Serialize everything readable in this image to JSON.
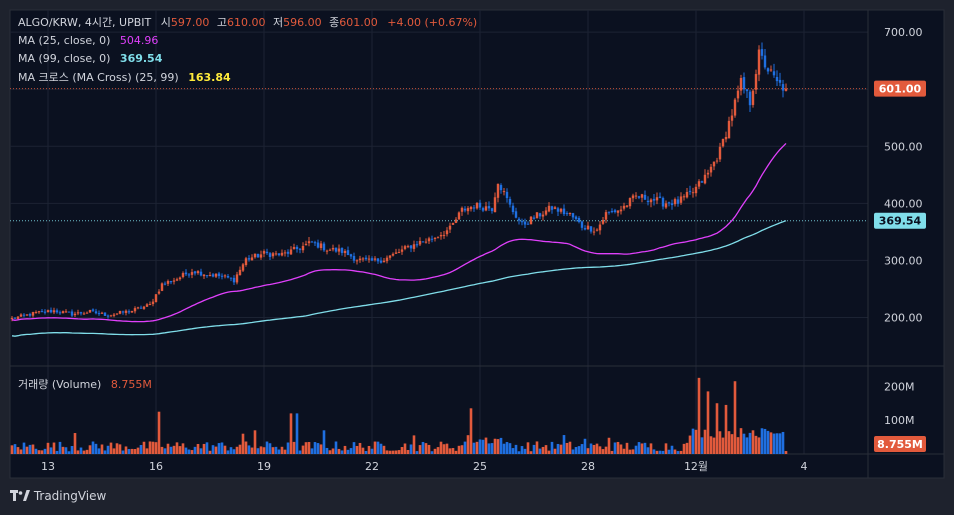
{
  "header": {
    "symbol": "ALGO/KRW, 4시간, UPBIT",
    "open_label": "시",
    "open": "597.00",
    "high_label": "고",
    "high": "610.00",
    "low_label": "저",
    "low": "596.00",
    "close_label": "종",
    "close": "601.00",
    "change": "+4.00 (+0.67%)"
  },
  "indicators": [
    {
      "label": "MA (25, close, 0)",
      "value": "504.96",
      "color": "#e040fb"
    },
    {
      "label": "MA (99, close, 0)",
      "value": "369.54",
      "color": "#80deea"
    },
    {
      "label": "MA 크로스 (MA Cross) (25, 99)",
      "value": "163.84",
      "color": "#ffeb3b"
    }
  ],
  "volume_pane": {
    "label": "거래량 (Volume)",
    "value": "8.755M"
  },
  "brand": "TradingView",
  "colors": {
    "up": "#e25a3c",
    "down": "#1f6fe0",
    "ma25": "#e040fb",
    "ma99": "#80deea",
    "background": "#0b1120",
    "panel": "#1e222d"
  },
  "chart_data": {
    "type": "candlestick",
    "title": "ALGO/KRW, 4시간, UPBIT",
    "price_axis": {
      "ticks": [
        200,
        300,
        400,
        500,
        600,
        700
      ],
      "tick_labels": [
        "200.00",
        "300.00",
        "400.00",
        "500.00",
        "600.00",
        "700.00"
      ],
      "range": [
        115,
        730
      ]
    },
    "volume_axis": {
      "ticks": [
        100,
        200
      ],
      "tick_labels": [
        "100M",
        "200M"
      ],
      "range": [
        0,
        260
      ]
    },
    "x_axis": {
      "tick_labels": [
        "13",
        "16",
        "19",
        "22",
        "25",
        "28",
        "12월",
        "4"
      ],
      "tick_index": [
        12,
        48,
        84,
        120,
        156,
        192,
        228,
        264
      ]
    },
    "price_labels": [
      {
        "value": 601.0,
        "text": "601.00",
        "bg": "#e25a3c",
        "fg": "#ffffff"
      },
      {
        "value": 369.54,
        "text": "369.54",
        "bg": "#80deea",
        "fg": "#0b1120"
      }
    ],
    "volume_label": {
      "value": 8.755,
      "text": "8.755M",
      "bg": "#e25a3c",
      "fg": "#ffffff"
    },
    "anchors": [
      [
        0,
        198
      ],
      [
        8,
        208
      ],
      [
        14,
        212
      ],
      [
        20,
        206
      ],
      [
        26,
        210
      ],
      [
        32,
        204
      ],
      [
        40,
        212
      ],
      [
        46,
        222
      ],
      [
        50,
        258
      ],
      [
        55,
        268
      ],
      [
        60,
        282
      ],
      [
        65,
        276
      ],
      [
        70,
        272
      ],
      [
        74,
        266
      ],
      [
        78,
        302
      ],
      [
        84,
        312
      ],
      [
        90,
        310
      ],
      [
        96,
        322
      ],
      [
        100,
        332
      ],
      [
        105,
        320
      ],
      [
        110,
        316
      ],
      [
        115,
        302
      ],
      [
        119,
        298
      ],
      [
        124,
        302
      ],
      [
        128,
        312
      ],
      [
        132,
        323
      ],
      [
        136,
        332
      ],
      [
        140,
        338
      ],
      [
        146,
        355
      ],
      [
        150,
        388
      ],
      [
        154,
        396
      ],
      [
        160,
        392
      ],
      [
        162,
        440
      ],
      [
        166,
        395
      ],
      [
        170,
        362
      ],
      [
        175,
        378
      ],
      [
        180,
        392
      ],
      [
        186,
        380
      ],
      [
        190,
        360
      ],
      [
        195,
        354
      ],
      [
        198,
        382
      ],
      [
        203,
        390
      ],
      [
        208,
        412
      ],
      [
        213,
        408
      ],
      [
        217,
        401
      ],
      [
        222,
        402
      ],
      [
        227,
        420
      ],
      [
        232,
        452
      ],
      [
        236,
        492
      ],
      [
        240,
        558
      ],
      [
        243,
        610
      ],
      [
        246,
        578
      ],
      [
        249,
        660
      ],
      [
        252,
        635
      ],
      [
        255,
        610
      ],
      [
        258,
        601
      ]
    ],
    "ma25_start": 196,
    "ma99_start": 168,
    "ma25_last": 504.96,
    "ma99_last": 369.54,
    "volume_spikes": [
      [
        21,
        62
      ],
      [
        49,
        125
      ],
      [
        77,
        60
      ],
      [
        81,
        70
      ],
      [
        93,
        120
      ],
      [
        95,
        120
      ],
      [
        104,
        70
      ],
      [
        134,
        55
      ],
      [
        153,
        135
      ],
      [
        184,
        56
      ],
      [
        191,
        45
      ],
      [
        199,
        48
      ],
      [
        229,
        225
      ],
      [
        232,
        185
      ],
      [
        235,
        150
      ],
      [
        238,
        145
      ],
      [
        241,
        215
      ],
      [
        244,
        60
      ],
      [
        247,
        70
      ],
      [
        258,
        8.755
      ]
    ],
    "bars": 259
  }
}
